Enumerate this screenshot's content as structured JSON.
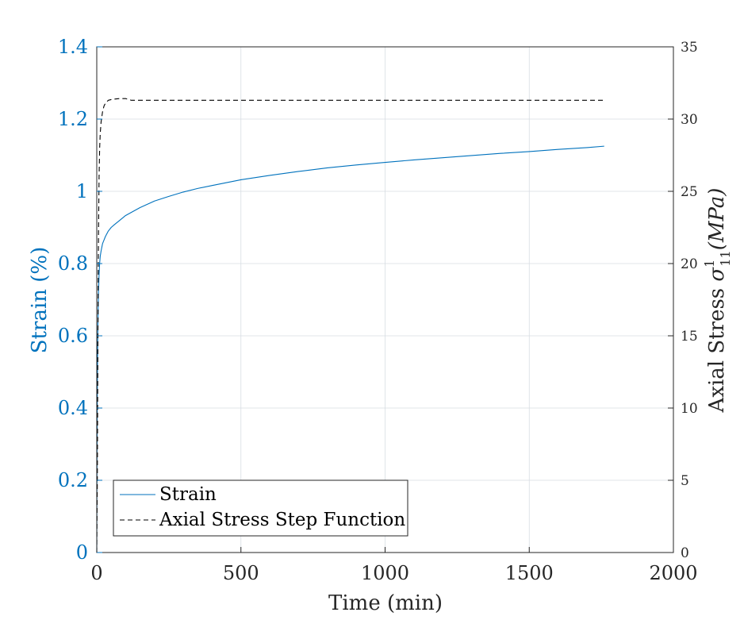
{
  "chart_data": {
    "type": "line",
    "xlabel": "Time (min)",
    "ylabel_left": "Strain (%)",
    "ylabel_right_prefix": "Axial Stress ",
    "ylabel_right_symbol": "σ",
    "ylabel_right_superscript": "1",
    "ylabel_right_subscript": "11",
    "ylabel_right_unit": "(MPa)",
    "xlim": [
      0,
      2000
    ],
    "ylim_left": [
      0,
      1.4
    ],
    "ylim_right": [
      0,
      35
    ],
    "x_ticks": [
      0,
      500,
      1000,
      1500,
      2000
    ],
    "x_tick_labels": [
      "0",
      "500",
      "1000",
      "1500",
      "2000"
    ],
    "y_left_ticks": [
      0,
      0.2,
      0.4,
      0.6,
      0.8,
      1.0,
      1.2,
      1.4
    ],
    "y_left_tick_labels": [
      "0",
      "0.2",
      "0.4",
      "0.6",
      "0.8",
      "1",
      "1.2",
      "1.4"
    ],
    "y_right_ticks": [
      0,
      5,
      10,
      15,
      20,
      25,
      30,
      35
    ],
    "y_right_tick_labels": [
      "0",
      "5",
      "10",
      "15",
      "20",
      "25",
      "30",
      "35"
    ],
    "grid": true,
    "legend_position": "bottom-left",
    "series": [
      {
        "name": "Strain",
        "axis": "left",
        "style": "solid",
        "color": "#0072BD",
        "x": [
          0,
          1,
          2,
          3,
          4,
          5,
          6,
          8,
          10,
          12,
          15,
          20,
          25,
          30,
          40,
          50,
          60,
          80,
          100,
          125,
          150,
          200,
          250,
          300,
          350,
          400,
          500,
          600,
          700,
          800,
          900,
          1000,
          1100,
          1200,
          1300,
          1400,
          1500,
          1600,
          1700,
          1760
        ],
        "y": [
          0,
          0.28,
          0.45,
          0.56,
          0.63,
          0.68,
          0.72,
          0.77,
          0.8,
          0.82,
          0.835,
          0.855,
          0.865,
          0.875,
          0.89,
          0.9,
          0.907,
          0.92,
          0.933,
          0.944,
          0.955,
          0.973,
          0.986,
          0.998,
          1.008,
          1.016,
          1.032,
          1.044,
          1.055,
          1.065,
          1.073,
          1.08,
          1.087,
          1.093,
          1.099,
          1.105,
          1.11,
          1.116,
          1.121,
          1.125
        ]
      },
      {
        "name": "Axial Stress Step Function",
        "axis": "right",
        "style": "dashed",
        "color": "#000000",
        "x": [
          0,
          2,
          4,
          6,
          8,
          10,
          12,
          15,
          20,
          25,
          30,
          40,
          50,
          60,
          80,
          100,
          120,
          150,
          200,
          500,
          1000,
          1500,
          1760
        ],
        "y": [
          0,
          5,
          15,
          22,
          26,
          28,
          29,
          29.8,
          30.5,
          30.9,
          31.1,
          31.3,
          31.35,
          31.38,
          31.42,
          31.42,
          31.3,
          31.3,
          31.3,
          31.3,
          31.3,
          31.3,
          31.3
        ]
      }
    ]
  }
}
